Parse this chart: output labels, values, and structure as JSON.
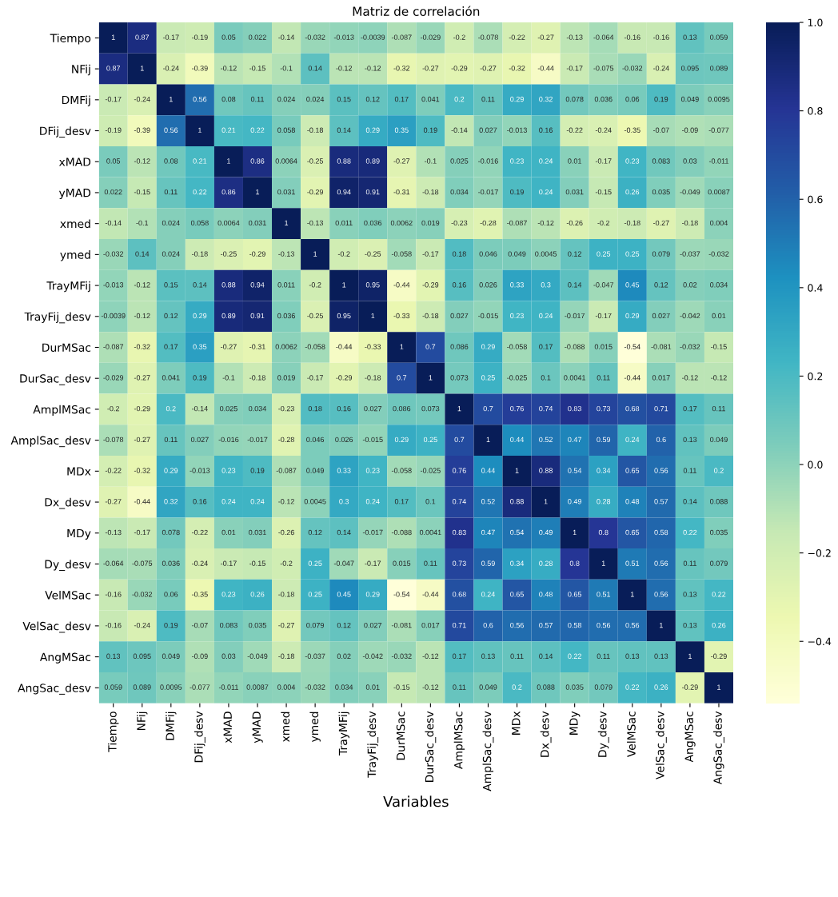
{
  "chart_data": {
    "type": "heatmap",
    "title": "Matriz de correlación",
    "xlabel": "Variables",
    "categories": [
      "Tiempo",
      "NFij",
      "DMFij",
      "DFij_desv",
      "xMAD",
      "yMAD",
      "xmed",
      "ymed",
      "TrayMFij",
      "TrayFij_desv",
      "DurMSac",
      "DurSac_desv",
      "AmplMSac",
      "AmplSac_desv",
      "MDx",
      "Dx_desv",
      "MDy",
      "Dy_desv",
      "VelMSac",
      "VelSac_desv",
      "AngMSac",
      "AngSac_desv"
    ],
    "y_categories": [
      "Tiempo",
      "NFij",
      "DMFij",
      "DFij_desv",
      "xMAD",
      "yMAD",
      "xmed",
      "ymed",
      "TrayMFij",
      "TrayFij_desv",
      "DurMSac",
      "DurSac_desv",
      "AmplMSac",
      "AmplSac_desv",
      "MDx",
      "Dx_desv",
      "MDy",
      "Dy_desv",
      "VelMSac",
      "VelSac_desv",
      "AngMSac",
      "AngSac_desv"
    ],
    "cells": [
      [
        1,
        0.87,
        -0.17,
        -0.19,
        0.05,
        0.022,
        -0.14,
        -0.032,
        -0.013,
        -0.0039,
        -0.087,
        -0.029,
        -0.2,
        -0.078,
        -0.22,
        -0.27,
        -0.13,
        -0.064,
        -0.16,
        -0.16,
        0.13,
        0.059
      ],
      [
        0.87,
        1,
        -0.24,
        -0.39,
        -0.12,
        -0.15,
        -0.1,
        0.14,
        -0.12,
        -0.12,
        -0.32,
        -0.27,
        -0.29,
        -0.27,
        -0.32,
        -0.44,
        -0.17,
        -0.075,
        -0.032,
        -0.24,
        0.095,
        0.089
      ],
      [
        -0.17,
        -0.24,
        1,
        0.56,
        0.08,
        0.11,
        0.024,
        0.024,
        0.15,
        0.12,
        0.17,
        0.041,
        0.2,
        0.11,
        0.29,
        0.32,
        0.078,
        0.036,
        0.06,
        0.19,
        0.049,
        0.0095
      ],
      [
        -0.19,
        -0.39,
        0.56,
        1,
        0.21,
        0.22,
        0.058,
        -0.18,
        0.14,
        0.29,
        0.35,
        0.19,
        -0.14,
        0.027,
        -0.013,
        0.16,
        -0.22,
        -0.24,
        -0.35,
        -0.07,
        -0.09,
        -0.077
      ],
      [
        0.05,
        -0.12,
        0.08,
        0.21,
        1,
        0.86,
        0.0064,
        -0.25,
        0.88,
        0.89,
        -0.27,
        -0.1,
        0.025,
        -0.016,
        0.23,
        0.24,
        0.01,
        -0.17,
        0.23,
        0.083,
        0.03,
        -0.011
      ],
      [
        0.022,
        -0.15,
        0.11,
        0.22,
        0.86,
        1,
        0.031,
        -0.29,
        0.94,
        0.91,
        -0.31,
        -0.18,
        0.034,
        -0.017,
        0.19,
        0.24,
        0.031,
        -0.15,
        0.26,
        0.035,
        -0.049,
        0.0087
      ],
      [
        -0.14,
        -0.1,
        0.024,
        0.058,
        0.0064,
        0.031,
        1,
        -0.13,
        0.011,
        0.036,
        0.0062,
        0.019,
        -0.23,
        -0.28,
        -0.087,
        -0.12,
        -0.26,
        -0.2,
        -0.18,
        -0.27,
        -0.18,
        0.004
      ],
      [
        -0.032,
        0.14,
        0.024,
        -0.18,
        -0.25,
        -0.29,
        -0.13,
        1,
        -0.2,
        -0.25,
        -0.058,
        -0.17,
        0.18,
        0.046,
        0.049,
        0.0045,
        0.12,
        0.25,
        0.25,
        0.079,
        -0.037,
        -0.032
      ],
      [
        -0.013,
        -0.12,
        0.15,
        0.14,
        0.88,
        0.94,
        0.011,
        -0.2,
        1,
        0.95,
        -0.44,
        -0.29,
        0.16,
        0.026,
        0.33,
        0.3,
        0.14,
        -0.047,
        0.45,
        0.12,
        0.02,
        0.034
      ],
      [
        -0.0039,
        -0.12,
        0.12,
        0.29,
        0.89,
        0.91,
        0.036,
        -0.25,
        0.95,
        1,
        -0.33,
        -0.18,
        0.027,
        -0.015,
        0.23,
        0.24,
        -0.017,
        -0.17,
        0.29,
        0.027,
        -0.042,
        0.01
      ],
      [
        -0.087,
        -0.32,
        0.17,
        0.35,
        -0.27,
        -0.31,
        0.0062,
        -0.058,
        -0.44,
        -0.33,
        1,
        0.7,
        0.086,
        0.29,
        -0.058,
        0.17,
        -0.088,
        0.015,
        -0.54,
        -0.081,
        -0.032,
        -0.15
      ],
      [
        -0.029,
        -0.27,
        0.041,
        0.19,
        -0.1,
        -0.18,
        0.019,
        -0.17,
        -0.29,
        -0.18,
        0.7,
        1,
        0.073,
        0.25,
        -0.025,
        0.1,
        0.0041,
        0.11,
        -0.44,
        0.017,
        -0.12,
        -0.12
      ],
      [
        -0.2,
        -0.29,
        0.2,
        -0.14,
        0.025,
        0.034,
        -0.23,
        0.18,
        0.16,
        0.027,
        0.086,
        0.073,
        1,
        0.7,
        0.76,
        0.74,
        0.83,
        0.73,
        0.68,
        0.71,
        0.17,
        0.11
      ],
      [
        -0.078,
        -0.27,
        0.11,
        0.027,
        -0.016,
        -0.017,
        -0.28,
        0.046,
        0.026,
        -0.015,
        0.29,
        0.25,
        0.7,
        1,
        0.44,
        0.52,
        0.47,
        0.59,
        0.24,
        0.6,
        0.13,
        0.049
      ],
      [
        -0.22,
        -0.32,
        0.29,
        -0.013,
        0.23,
        0.19,
        -0.087,
        0.049,
        0.33,
        0.23,
        -0.058,
        -0.025,
        0.76,
        0.44,
        1,
        0.88,
        0.54,
        0.34,
        0.65,
        0.56,
        0.11,
        0.2
      ],
      [
        -0.27,
        -0.44,
        0.32,
        0.16,
        0.24,
        0.24,
        -0.12,
        0.0045,
        0.3,
        0.24,
        0.17,
        0.1,
        0.74,
        0.52,
        0.88,
        1,
        0.49,
        0.28,
        0.48,
        0.57,
        0.14,
        0.088
      ],
      [
        -0.13,
        -0.17,
        0.078,
        -0.22,
        0.01,
        0.031,
        -0.26,
        0.12,
        0.14,
        -0.017,
        -0.088,
        0.0041,
        0.83,
        0.47,
        0.54,
        0.49,
        1,
        0.8,
        0.65,
        0.58,
        0.22,
        0.035
      ],
      [
        -0.064,
        -0.075,
        0.036,
        -0.24,
        -0.17,
        -0.15,
        -0.2,
        0.25,
        -0.047,
        -0.17,
        0.015,
        0.11,
        0.73,
        0.59,
        0.34,
        0.28,
        0.8,
        1,
        0.51,
        0.56,
        0.11,
        0.079
      ],
      [
        -0.16,
        -0.032,
        0.06,
        -0.35,
        0.23,
        0.26,
        -0.18,
        0.25,
        0.45,
        0.29,
        -0.54,
        -0.44,
        0.68,
        0.24,
        0.65,
        0.48,
        0.65,
        0.51,
        1,
        0.56,
        0.13,
        0.22
      ],
      [
        -0.16,
        -0.24,
        0.19,
        -0.07,
        0.083,
        0.035,
        -0.27,
        0.079,
        0.12,
        0.027,
        -0.081,
        0.017,
        0.71,
        0.6,
        0.56,
        0.57,
        0.58,
        0.56,
        0.56,
        1,
        0.13,
        0.26
      ],
      [
        0.13,
        0.095,
        0.049,
        -0.09,
        0.03,
        -0.049,
        -0.18,
        -0.037,
        0.02,
        -0.042,
        -0.032,
        -0.12,
        0.17,
        0.13,
        0.11,
        0.14,
        0.22,
        0.11,
        0.13,
        0.13,
        1,
        -0.29
      ],
      [
        0.059,
        0.089,
        0.0095,
        -0.077,
        -0.011,
        0.0087,
        0.004,
        -0.032,
        0.034,
        0.01,
        -0.15,
        -0.12,
        0.11,
        0.049,
        0.2,
        0.088,
        0.035,
        0.079,
        0.22,
        0.26,
        -0.29,
        1
      ]
    ],
    "clim": [
      -0.54,
      1
    ],
    "cticks": [
      {
        "value": -0.4,
        "label": "−0.4"
      },
      {
        "value": -0.2,
        "label": "−0.2"
      },
      {
        "value": 0.0,
        "label": "0.0"
      },
      {
        "value": 0.2,
        "label": "0.2"
      },
      {
        "value": 0.4,
        "label": "0.4"
      },
      {
        "value": 0.6,
        "label": "0.6"
      },
      {
        "value": 0.8,
        "label": "0.8"
      },
      {
        "value": 1.0,
        "label": "1.0"
      }
    ],
    "data_labels": true
  }
}
